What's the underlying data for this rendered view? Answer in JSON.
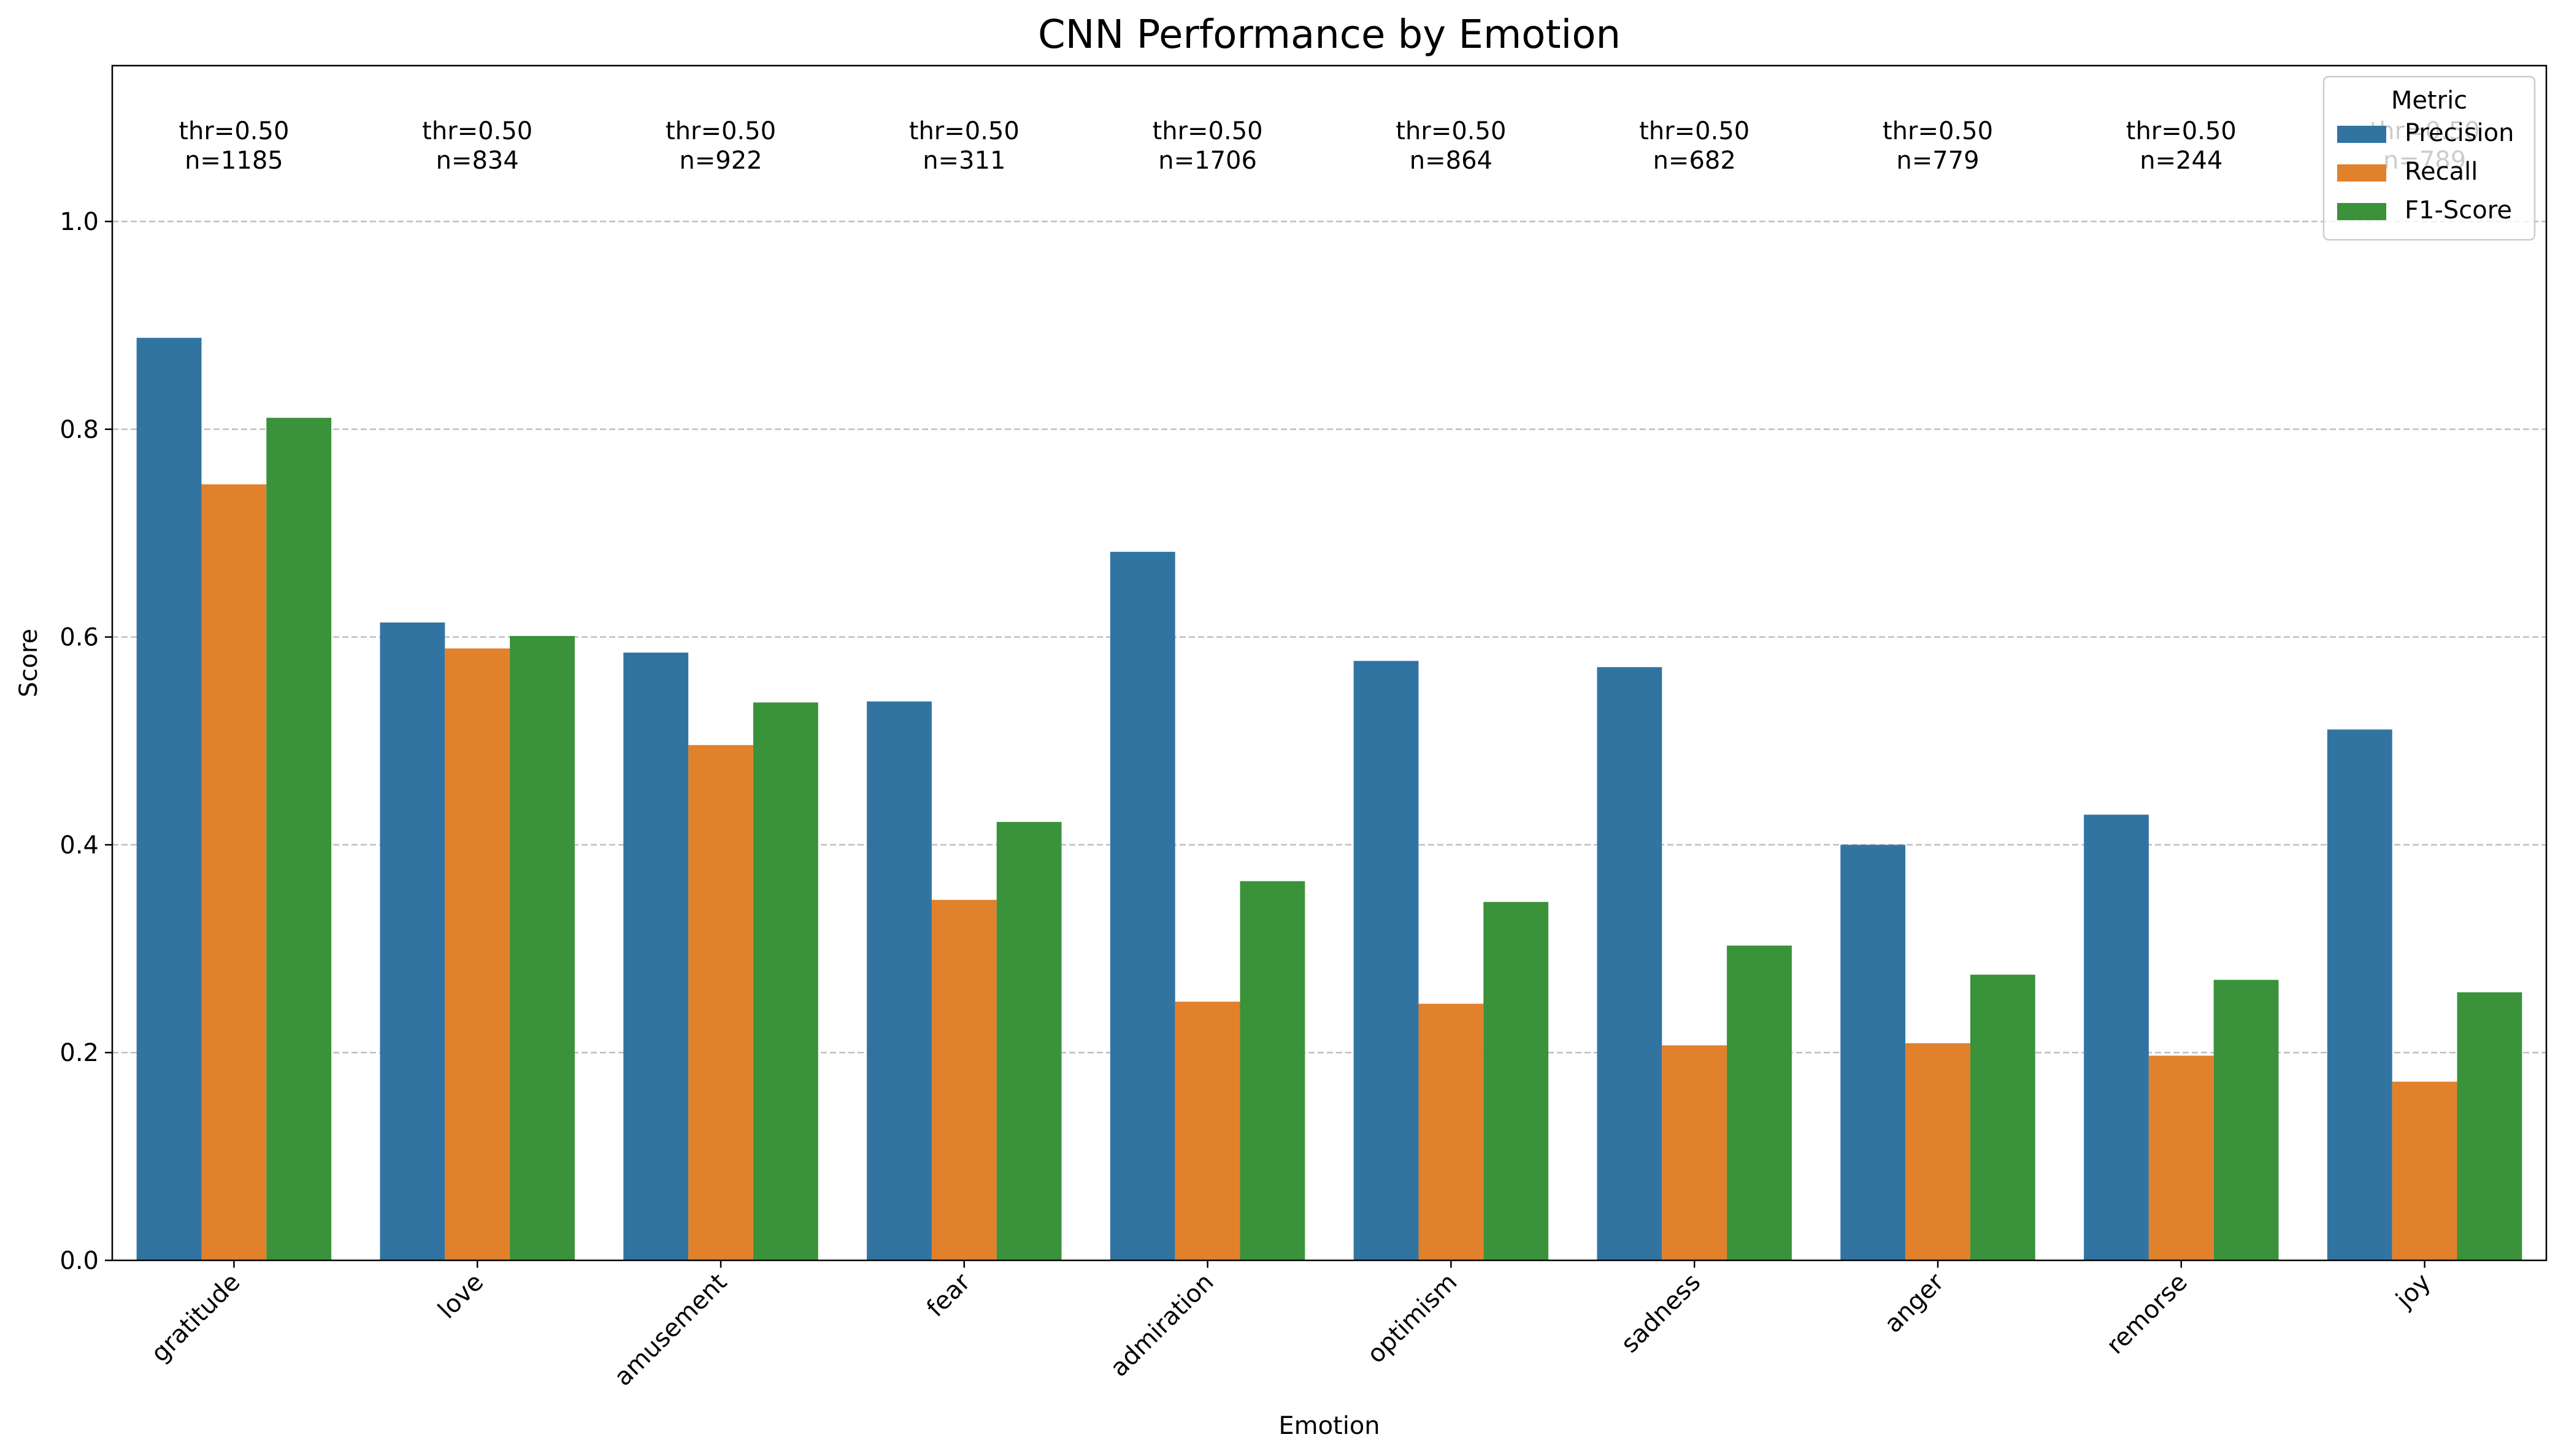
{
  "chart_data": {
    "type": "bar",
    "title": "CNN Performance by Emotion",
    "xlabel": "Emotion",
    "ylabel": "Score",
    "ylim": [
      0,
      1.15
    ],
    "yticks": [
      "0.0",
      "0.2",
      "0.4",
      "0.6",
      "0.8",
      "1.0"
    ],
    "grid": "horizontal dashed",
    "categories": [
      "gratitude",
      "love",
      "amusement",
      "fear",
      "admiration",
      "optimism",
      "sadness",
      "anger",
      "remorse",
      "joy"
    ],
    "series": [
      {
        "name": "Precision",
        "color": "#3274a1",
        "values": [
          0.888,
          0.614,
          0.585,
          0.538,
          0.682,
          0.577,
          0.571,
          0.4,
          0.429,
          0.511
        ]
      },
      {
        "name": "Recall",
        "color": "#e1812c",
        "values": [
          0.747,
          0.589,
          0.496,
          0.347,
          0.249,
          0.247,
          0.207,
          0.209,
          0.197,
          0.172
        ]
      },
      {
        "name": "F1-Score",
        "color": "#3a923a",
        "values": [
          0.811,
          0.601,
          0.537,
          0.422,
          0.365,
          0.345,
          0.303,
          0.275,
          0.27,
          0.258
        ]
      }
    ],
    "annotations": [
      {
        "threshold": "thr=0.50",
        "count": "n=1185"
      },
      {
        "threshold": "thr=0.50",
        "count": "n=834"
      },
      {
        "threshold": "thr=0.50",
        "count": "n=922"
      },
      {
        "threshold": "thr=0.50",
        "count": "n=311"
      },
      {
        "threshold": "thr=0.50",
        "count": "n=1706"
      },
      {
        "threshold": "thr=0.50",
        "count": "n=864"
      },
      {
        "threshold": "thr=0.50",
        "count": "n=682"
      },
      {
        "threshold": "thr=0.50",
        "count": "n=779"
      },
      {
        "threshold": "thr=0.50",
        "count": "n=244"
      },
      {
        "threshold": "thr=0.50",
        "count": "n=789"
      }
    ],
    "legend": {
      "title": "Metric",
      "placement": "top-right"
    }
  }
}
